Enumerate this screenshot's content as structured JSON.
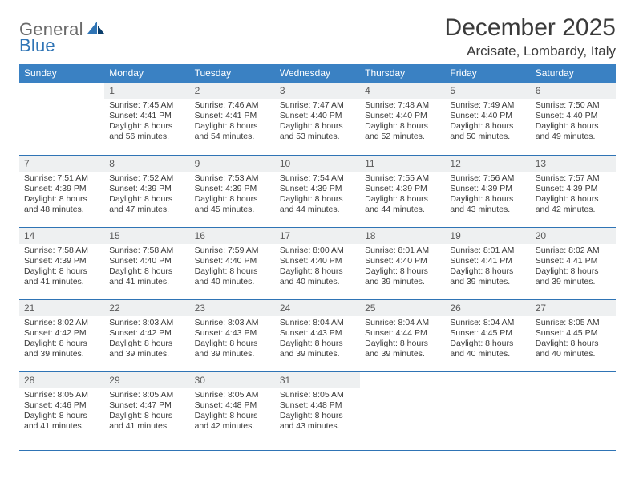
{
  "brand": {
    "text1": "General",
    "text2": "Blue"
  },
  "title": "December 2025",
  "location": "Arcisate, Lombardy, Italy",
  "colors": {
    "header_bg": "#3a81c3",
    "header_text": "#ffffff",
    "daynum_bg": "#eef0f1",
    "border": "#2f74b5",
    "brand_gray": "#6a6a6a",
    "brand_blue": "#2f74b5",
    "text": "#3a3a3a",
    "page_bg": "#ffffff"
  },
  "typography": {
    "title_fontsize": 30,
    "location_fontsize": 17,
    "dayheader_fontsize": 12,
    "daynum_fontsize": 12,
    "body_fontsize": 10.5
  },
  "day_headers_fontweight": 400,
  "day_headers": [
    "Sunday",
    "Monday",
    "Tuesday",
    "Wednesday",
    "Thursday",
    "Friday",
    "Saturday"
  ],
  "weeks": [
    [
      {
        "n": "",
        "sr": "",
        "ss": "",
        "dl": ""
      },
      {
        "n": "1",
        "sr": "Sunrise: 7:45 AM",
        "ss": "Sunset: 4:41 PM",
        "dl": "Daylight: 8 hours and 56 minutes."
      },
      {
        "n": "2",
        "sr": "Sunrise: 7:46 AM",
        "ss": "Sunset: 4:41 PM",
        "dl": "Daylight: 8 hours and 54 minutes."
      },
      {
        "n": "3",
        "sr": "Sunrise: 7:47 AM",
        "ss": "Sunset: 4:40 PM",
        "dl": "Daylight: 8 hours and 53 minutes."
      },
      {
        "n": "4",
        "sr": "Sunrise: 7:48 AM",
        "ss": "Sunset: 4:40 PM",
        "dl": "Daylight: 8 hours and 52 minutes."
      },
      {
        "n": "5",
        "sr": "Sunrise: 7:49 AM",
        "ss": "Sunset: 4:40 PM",
        "dl": "Daylight: 8 hours and 50 minutes."
      },
      {
        "n": "6",
        "sr": "Sunrise: 7:50 AM",
        "ss": "Sunset: 4:40 PM",
        "dl": "Daylight: 8 hours and 49 minutes."
      }
    ],
    [
      {
        "n": "7",
        "sr": "Sunrise: 7:51 AM",
        "ss": "Sunset: 4:39 PM",
        "dl": "Daylight: 8 hours and 48 minutes."
      },
      {
        "n": "8",
        "sr": "Sunrise: 7:52 AM",
        "ss": "Sunset: 4:39 PM",
        "dl": "Daylight: 8 hours and 47 minutes."
      },
      {
        "n": "9",
        "sr": "Sunrise: 7:53 AM",
        "ss": "Sunset: 4:39 PM",
        "dl": "Daylight: 8 hours and 45 minutes."
      },
      {
        "n": "10",
        "sr": "Sunrise: 7:54 AM",
        "ss": "Sunset: 4:39 PM",
        "dl": "Daylight: 8 hours and 44 minutes."
      },
      {
        "n": "11",
        "sr": "Sunrise: 7:55 AM",
        "ss": "Sunset: 4:39 PM",
        "dl": "Daylight: 8 hours and 44 minutes."
      },
      {
        "n": "12",
        "sr": "Sunrise: 7:56 AM",
        "ss": "Sunset: 4:39 PM",
        "dl": "Daylight: 8 hours and 43 minutes."
      },
      {
        "n": "13",
        "sr": "Sunrise: 7:57 AM",
        "ss": "Sunset: 4:39 PM",
        "dl": "Daylight: 8 hours and 42 minutes."
      }
    ],
    [
      {
        "n": "14",
        "sr": "Sunrise: 7:58 AM",
        "ss": "Sunset: 4:39 PM",
        "dl": "Daylight: 8 hours and 41 minutes."
      },
      {
        "n": "15",
        "sr": "Sunrise: 7:58 AM",
        "ss": "Sunset: 4:40 PM",
        "dl": "Daylight: 8 hours and 41 minutes."
      },
      {
        "n": "16",
        "sr": "Sunrise: 7:59 AM",
        "ss": "Sunset: 4:40 PM",
        "dl": "Daylight: 8 hours and 40 minutes."
      },
      {
        "n": "17",
        "sr": "Sunrise: 8:00 AM",
        "ss": "Sunset: 4:40 PM",
        "dl": "Daylight: 8 hours and 40 minutes."
      },
      {
        "n": "18",
        "sr": "Sunrise: 8:01 AM",
        "ss": "Sunset: 4:40 PM",
        "dl": "Daylight: 8 hours and 39 minutes."
      },
      {
        "n": "19",
        "sr": "Sunrise: 8:01 AM",
        "ss": "Sunset: 4:41 PM",
        "dl": "Daylight: 8 hours and 39 minutes."
      },
      {
        "n": "20",
        "sr": "Sunrise: 8:02 AM",
        "ss": "Sunset: 4:41 PM",
        "dl": "Daylight: 8 hours and 39 minutes."
      }
    ],
    [
      {
        "n": "21",
        "sr": "Sunrise: 8:02 AM",
        "ss": "Sunset: 4:42 PM",
        "dl": "Daylight: 8 hours and 39 minutes."
      },
      {
        "n": "22",
        "sr": "Sunrise: 8:03 AM",
        "ss": "Sunset: 4:42 PM",
        "dl": "Daylight: 8 hours and 39 minutes."
      },
      {
        "n": "23",
        "sr": "Sunrise: 8:03 AM",
        "ss": "Sunset: 4:43 PM",
        "dl": "Daylight: 8 hours and 39 minutes."
      },
      {
        "n": "24",
        "sr": "Sunrise: 8:04 AM",
        "ss": "Sunset: 4:43 PM",
        "dl": "Daylight: 8 hours and 39 minutes."
      },
      {
        "n": "25",
        "sr": "Sunrise: 8:04 AM",
        "ss": "Sunset: 4:44 PM",
        "dl": "Daylight: 8 hours and 39 minutes."
      },
      {
        "n": "26",
        "sr": "Sunrise: 8:04 AM",
        "ss": "Sunset: 4:45 PM",
        "dl": "Daylight: 8 hours and 40 minutes."
      },
      {
        "n": "27",
        "sr": "Sunrise: 8:05 AM",
        "ss": "Sunset: 4:45 PM",
        "dl": "Daylight: 8 hours and 40 minutes."
      }
    ],
    [
      {
        "n": "28",
        "sr": "Sunrise: 8:05 AM",
        "ss": "Sunset: 4:46 PM",
        "dl": "Daylight: 8 hours and 41 minutes."
      },
      {
        "n": "29",
        "sr": "Sunrise: 8:05 AM",
        "ss": "Sunset: 4:47 PM",
        "dl": "Daylight: 8 hours and 41 minutes."
      },
      {
        "n": "30",
        "sr": "Sunrise: 8:05 AM",
        "ss": "Sunset: 4:48 PM",
        "dl": "Daylight: 8 hours and 42 minutes."
      },
      {
        "n": "31",
        "sr": "Sunrise: 8:05 AM",
        "ss": "Sunset: 4:48 PM",
        "dl": "Daylight: 8 hours and 43 minutes."
      },
      {
        "n": "",
        "sr": "",
        "ss": "",
        "dl": ""
      },
      {
        "n": "",
        "sr": "",
        "ss": "",
        "dl": ""
      },
      {
        "n": "",
        "sr": "",
        "ss": "",
        "dl": ""
      }
    ]
  ]
}
